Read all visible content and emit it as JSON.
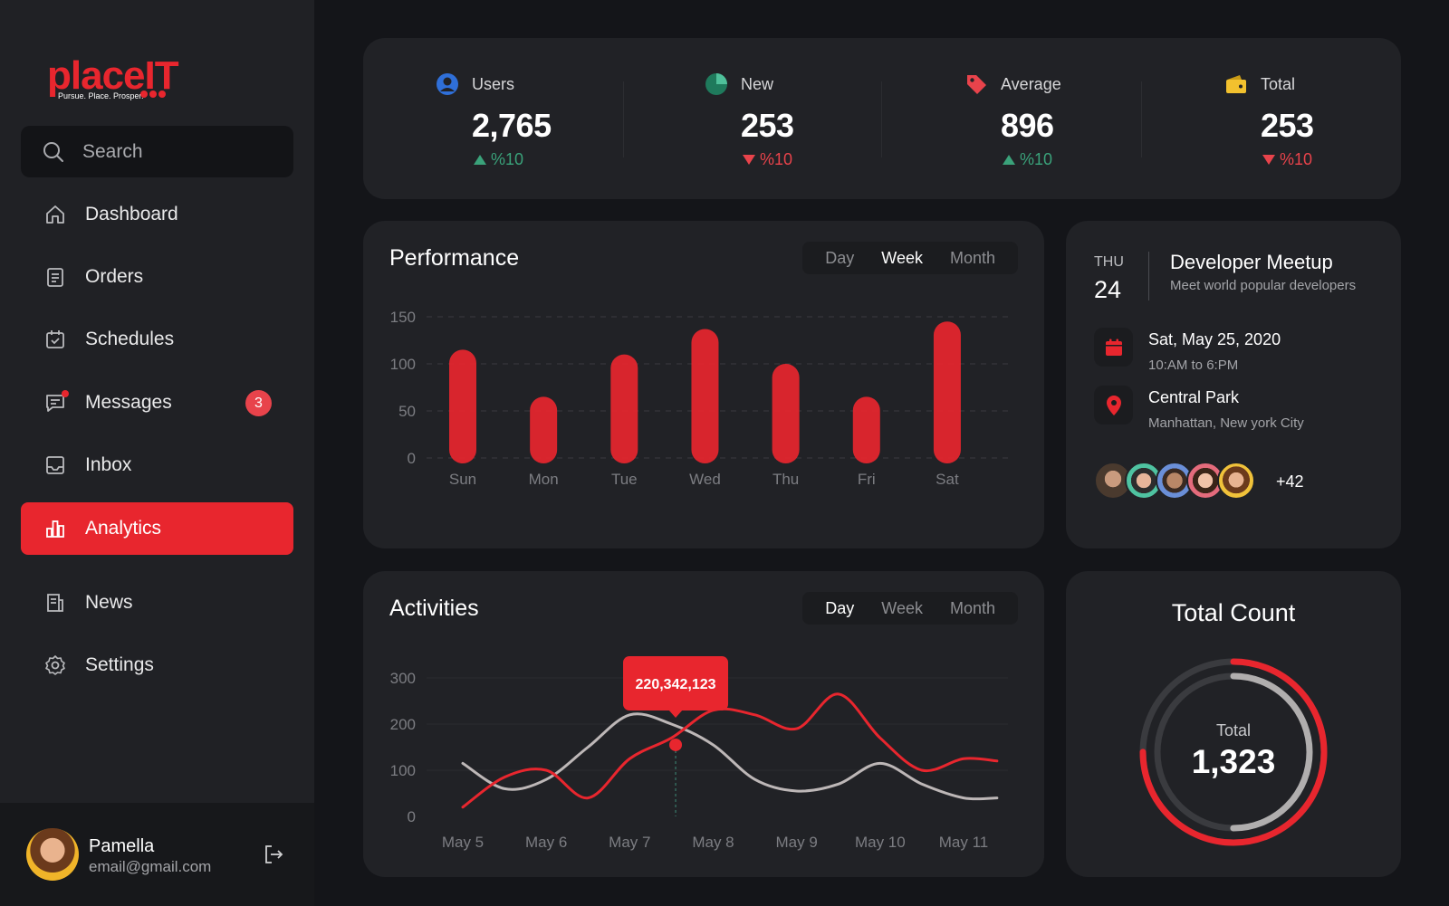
{
  "brand": {
    "name": "placeIT",
    "tagline": "Pursue. Place. Prosper."
  },
  "search": {
    "placeholder": "Search"
  },
  "nav": [
    {
      "label": "Dashboard",
      "icon": "home-icon"
    },
    {
      "label": "Orders",
      "icon": "clipboard-icon"
    },
    {
      "label": "Schedules",
      "icon": "calendar-check-icon"
    },
    {
      "label": "Messages",
      "icon": "message-icon",
      "badge": "3"
    },
    {
      "label": "Inbox",
      "icon": "inbox-icon"
    },
    {
      "label": "Analytics",
      "icon": "bar-chart-icon",
      "active": true
    },
    {
      "label": "News",
      "icon": "newspaper-icon"
    },
    {
      "label": "Settings",
      "icon": "gear-icon"
    }
  ],
  "user": {
    "name": "Pamella",
    "email": "email@gmail.com"
  },
  "stats": [
    {
      "label": "Users",
      "value": "2,765",
      "change": "%10",
      "trend": "up",
      "icon": "user-icon",
      "color": "#2f6fd8"
    },
    {
      "label": "New",
      "value": "253",
      "change": "%10",
      "trend": "down",
      "icon": "pie-icon",
      "color": "#3aa27a"
    },
    {
      "label": "Average",
      "value": "896",
      "change": "%10",
      "trend": "up",
      "icon": "tag-icon",
      "color": "#e8434b"
    },
    {
      "label": "Total",
      "value": "253",
      "change": "%10",
      "trend": "down",
      "icon": "wallet-icon",
      "color": "#f2c12e"
    }
  ],
  "performance": {
    "title": "Performance",
    "tabs": [
      "Day",
      "Week",
      "Month"
    ],
    "active_tab": "Week"
  },
  "activities": {
    "title": "Activities",
    "tabs": [
      "Day",
      "Week",
      "Month"
    ],
    "active_tab": "Day",
    "tooltip": "220,342,123"
  },
  "meetup": {
    "day_name": "THU",
    "day_num": "24",
    "title": "Developer Meetup",
    "subtitle": "Meet world popular developers",
    "date": "Sat, May 25, 2020",
    "time": "10:AM to 6:PM",
    "place": "Central Park",
    "address": "Manhattan, New york City",
    "more_attendees": "+42"
  },
  "total_count": {
    "title": "Total Count",
    "label": "Total",
    "value": "1,323",
    "fraction": 0.75
  },
  "colors": {
    "accent": "#e8262e",
    "up": "#3aa27a",
    "down": "#e8434b",
    "secondary_line": "#bdb7b7"
  },
  "chart_data": [
    {
      "type": "bar",
      "title": "Performance",
      "categories": [
        "Sun",
        "Mon",
        "Tue",
        "Wed",
        "Thu",
        "Fri",
        "Sat"
      ],
      "values": [
        115,
        65,
        110,
        137,
        100,
        65,
        145
      ],
      "ylim": [
        0,
        150
      ],
      "yticks": [
        0,
        50,
        100,
        150
      ],
      "grid": true
    },
    {
      "type": "line",
      "title": "Activities",
      "categories": [
        "May 5",
        "May 6",
        "May 7",
        "May 8",
        "May 9",
        "May 10",
        "May 11"
      ],
      "x": [
        0,
        0.5,
        1,
        1.5,
        2,
        2.5,
        3,
        3.5,
        4,
        4.5,
        5,
        5.5,
        6,
        6.4
      ],
      "series": [
        {
          "color": "#e8262e",
          "values": [
            20,
            85,
            100,
            40,
            125,
            170,
            230,
            220,
            190,
            265,
            170,
            100,
            125,
            120
          ]
        },
        {
          "color": "#bdb7b7",
          "values": [
            115,
            60,
            80,
            150,
            220,
            200,
            155,
            80,
            55,
            70,
            115,
            70,
            40,
            40
          ]
        }
      ],
      "ylim": [
        0,
        300
      ],
      "yticks": [
        0,
        100,
        200,
        300
      ],
      "highlight": {
        "label": "220,342,123",
        "x": 2.55,
        "y": 155
      }
    }
  ]
}
